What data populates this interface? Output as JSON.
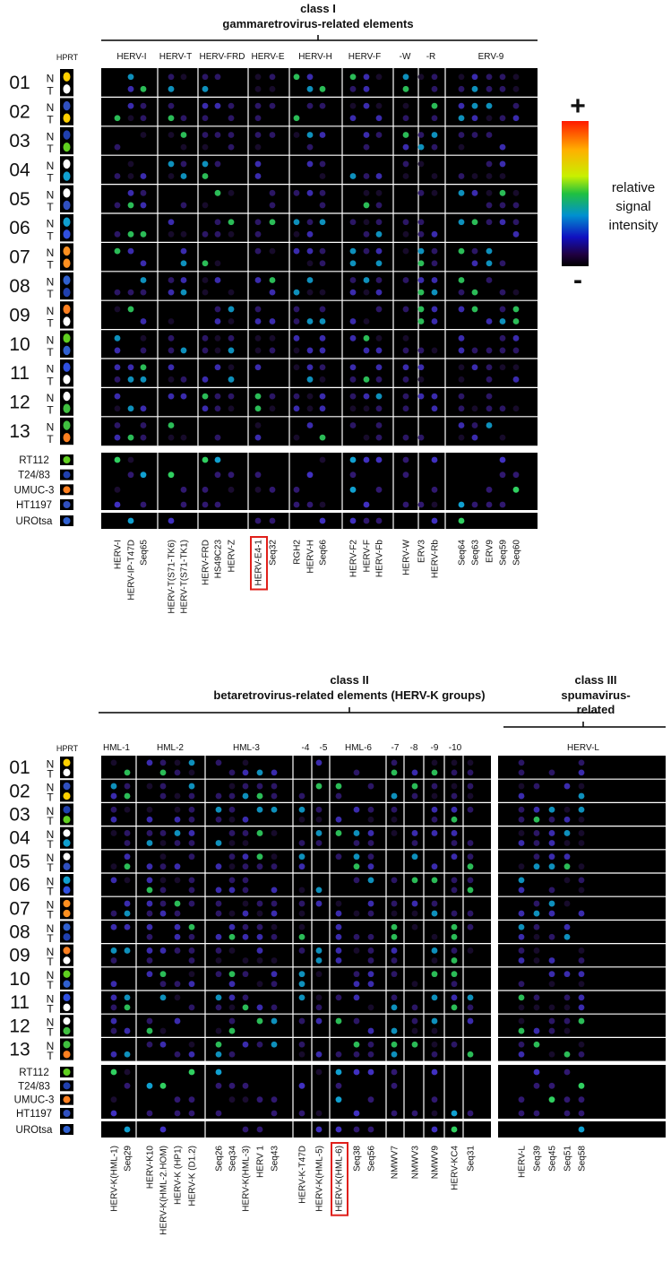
{
  "top": {
    "title": "class I",
    "subtitle": "gammaretrovirus-related elements",
    "groups": [
      "HERV-I",
      "HERV-T",
      "HERV-FRD",
      "HERV-E",
      "HERV-H",
      "HERV-F",
      "-W",
      "-R",
      "ERV-9"
    ],
    "columns": [
      {
        "text": "HERV-I"
      },
      {
        "text": "HERV-IP-T47D"
      },
      {
        "text": "Seq65"
      },
      {
        "text": "HERV-T(S71-TK6)"
      },
      {
        "text": "HERV-T(S71-TK1)"
      },
      {
        "text": "HERV-FRD"
      },
      {
        "text": "HS49C23"
      },
      {
        "text": "HERV-Z"
      },
      {
        "text": "HERV-E4-1",
        "color": "#e0201b",
        "boxed": true
      },
      {
        "text": "Seq32"
      },
      {
        "text": "RGH2"
      },
      {
        "text": "HERV-H"
      },
      {
        "text": "Seq66"
      },
      {
        "text": "HERV-F2"
      },
      {
        "text": "HERV-F"
      },
      {
        "text": "HERV-Fb"
      },
      {
        "text": "HERV-W",
        "color": "#e0201b"
      },
      {
        "text": "ERV3"
      },
      {
        "text": "HERV-Rb",
        "color": "#e0201b"
      },
      {
        "text": "Seq64"
      },
      {
        "text": "Seq63"
      },
      {
        "text": "ERV9",
        "color": "#e0201b"
      },
      {
        "text": "Seq59"
      },
      {
        "text": "Seq60"
      }
    ]
  },
  "bottom": {
    "title": "class II",
    "subtitle": "betaretrovirus-related elements (HERV-K groups)",
    "title2": "class III",
    "subtitle2": [
      "spumavirus-",
      "related"
    ],
    "groups": [
      "HML-1",
      "HML-2",
      "HML-3",
      "-4",
      "-5",
      "HML-6",
      "-7",
      "-8",
      "-9",
      "-10",
      "HERV-L"
    ],
    "columns": [
      {
        "text": "HERV-K(HML-1)"
      },
      {
        "text": "Seq29"
      },
      {
        "text": "HERV-K10"
      },
      {
        "text": "HERV-K(HML-2.HOM)"
      },
      {
        "text": "HERV-K (HP1)"
      },
      {
        "text": "HERV-K (D1.2)"
      },
      {
        "text": "Seq26"
      },
      {
        "text": "Seq34"
      },
      {
        "text": "HERV-K(HML-3)"
      },
      {
        "text": "HERV 1"
      },
      {
        "text": "Seq43"
      },
      {
        "text": "HERV-K-T47D",
        "color": "#e0201b"
      },
      {
        "text": "HERV-K(HML-5)"
      },
      {
        "text": "HERV-K(HML-6)",
        "boxed": true
      },
      {
        "text": "Seq38"
      },
      {
        "text": "Seq56"
      },
      {
        "text": "NMWV7"
      },
      {
        "text": "NMWV3"
      },
      {
        "text": "NMWV9"
      },
      {
        "text": "HERV-KC4",
        "color": "#e0201b"
      },
      {
        "text": "Seq31"
      },
      {
        "text": "HERV-L"
      },
      {
        "text": "Seq39"
      },
      {
        "text": "Seq45"
      },
      {
        "text": "Seq51"
      },
      {
        "text": "Seq58"
      }
    ]
  },
  "hprt": "HPRT",
  "samples": [
    "01",
    "02",
    "03",
    "04",
    "05",
    "06",
    "07",
    "08",
    "09",
    "10",
    "11",
    "12",
    "13"
  ],
  "sublabels": [
    "N",
    "T"
  ],
  "cell_lines": [
    "RT112",
    "T24/83",
    "UMUC-3",
    "HT1197",
    "UROtsa"
  ],
  "legend": {
    "plus": "+",
    "minus": "-",
    "label": [
      "relative",
      "signal",
      "intensity"
    ]
  }
}
